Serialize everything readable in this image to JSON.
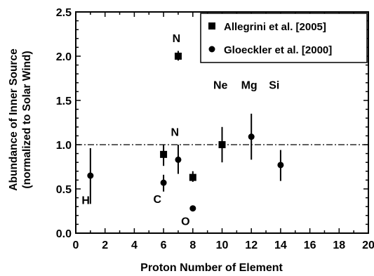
{
  "chart_data": {
    "type": "scatter",
    "xlabel": "Proton Number of Element",
    "ylabel_lines": [
      "Abundance of Inner Source",
      "(normalized to Solar Wind)"
    ],
    "xlim": [
      0,
      20
    ],
    "ylim": [
      0,
      2.5
    ],
    "xticks": [
      "0",
      "2",
      "4",
      "6",
      "8",
      "10",
      "12",
      "14",
      "16",
      "18",
      "20"
    ],
    "yticks": [
      "0.0",
      "0.5",
      "1.0",
      "1.5",
      "2.0",
      "2.5"
    ],
    "reference_line_y": 1.0,
    "legend_position": "top-right",
    "series": [
      {
        "name": "Allegrini et al. [2005]",
        "marker": "square",
        "points": [
          {
            "x": 6,
            "y": 0.89,
            "yerr": [
              0.76,
              1.0
            ]
          },
          {
            "x": 7,
            "y": 2.0,
            "yerr": [
              1.95,
              2.06
            ]
          },
          {
            "x": 8,
            "y": 0.63,
            "yerr": [
              0.58,
              0.7
            ]
          },
          {
            "x": 10,
            "y": 1.0,
            "yerr": [
              0.8,
              1.2
            ]
          }
        ]
      },
      {
        "name": "Gloeckler et al. [2000]",
        "marker": "circle",
        "points": [
          {
            "x": 1,
            "y": 0.65,
            "yerr": [
              0.33,
              0.96
            ]
          },
          {
            "x": 6,
            "y": 0.57,
            "yerr": [
              0.47,
              0.66
            ]
          },
          {
            "x": 7,
            "y": 0.83,
            "yerr": [
              0.67,
              1.0
            ]
          },
          {
            "x": 8,
            "y": 0.28,
            "yerr": null
          },
          {
            "x": 12,
            "y": 1.09,
            "yerr": [
              0.83,
              1.35
            ]
          },
          {
            "x": 14,
            "y": 0.77,
            "yerr": [
              0.59,
              0.94
            ]
          }
        ]
      }
    ],
    "annotations": [
      {
        "text": "N",
        "x": 6.6,
        "y": 2.16
      },
      {
        "text": "Ne",
        "x": 9.4,
        "y": 1.63
      },
      {
        "text": "Mg",
        "x": 11.3,
        "y": 1.63
      },
      {
        "text": "Si",
        "x": 13.2,
        "y": 1.63
      },
      {
        "text": "N",
        "x": 6.5,
        "y": 1.1
      },
      {
        "text": "H",
        "x": 0.4,
        "y": 0.33
      },
      {
        "text": "C",
        "x": 5.3,
        "y": 0.34
      },
      {
        "text": "O",
        "x": 7.2,
        "y": 0.09
      }
    ]
  }
}
